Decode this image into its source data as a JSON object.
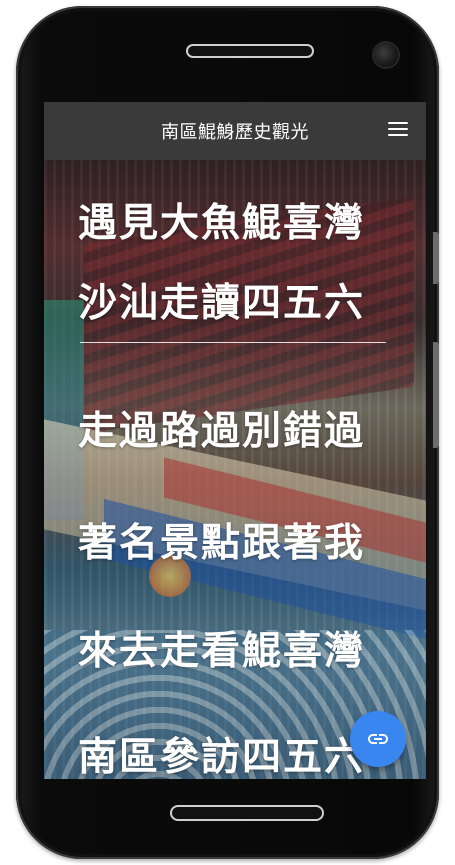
{
  "appbar": {
    "title": "南區鯤鯓歷史觀光",
    "menu_icon": "hamburger-menu-icon"
  },
  "hero": {
    "lines_top": [
      "遇見大魚鯤喜灣",
      "沙汕走讀四五六"
    ],
    "lines_bottom": [
      "走過路過別錯過",
      "著名景點跟著我",
      "來去走看鯤喜灣",
      "南區參訪四五六"
    ]
  },
  "fab": {
    "icon": "link-icon",
    "color": "#3a86f0"
  },
  "colors": {
    "appbar_bg": "#3a3a3a",
    "text": "#ffffff"
  }
}
